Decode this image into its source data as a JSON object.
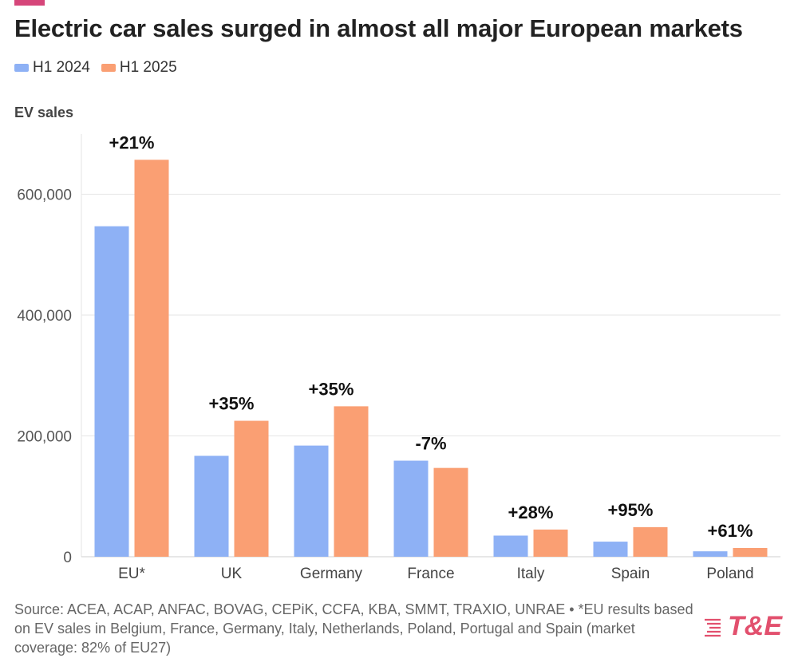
{
  "colors": {
    "accent": "#d6467a",
    "series_2024": "#8eb1f5",
    "series_2025": "#fa9f73",
    "logo": "#e2506e"
  },
  "title": "Electric car sales surged in almost all major European markets",
  "logo_text": "T&E",
  "source": "Source: ACEA, ACAP, ANFAC, BOVAG, CEPiK, CCFA, KBA, SMMT, TRAXIO, UNRAE • *EU results based on EV sales in Belgium, France, Germany, Italy, Netherlands, Poland, Portugal and Spain (market coverage: 82% of EU27)",
  "chart_data": {
    "type": "bar",
    "title": "Electric car sales surged in almost all major European markets",
    "xlabel": "",
    "ylabel": "EV sales",
    "ylim": [
      0,
      700000
    ],
    "yticks": [
      0,
      200000,
      400000,
      600000
    ],
    "ytick_labels": [
      "0",
      "200,000",
      "400,000",
      "600,000"
    ],
    "grid": true,
    "legend_position": "top-left",
    "categories": [
      "EU*",
      "UK",
      "Germany",
      "France",
      "Italy",
      "Spain",
      "Poland"
    ],
    "series": [
      {
        "name": "H1 2024",
        "values": [
          547000,
          167000,
          184000,
          159000,
          35000,
          25000,
          9000
        ]
      },
      {
        "name": "H1 2025",
        "values": [
          657000,
          225000,
          249000,
          147000,
          45000,
          49000,
          14500
        ]
      }
    ],
    "annotations": [
      "+21%",
      "+35%",
      "+35%",
      "-7%",
      "+28%",
      "+95%",
      "+61%"
    ]
  }
}
